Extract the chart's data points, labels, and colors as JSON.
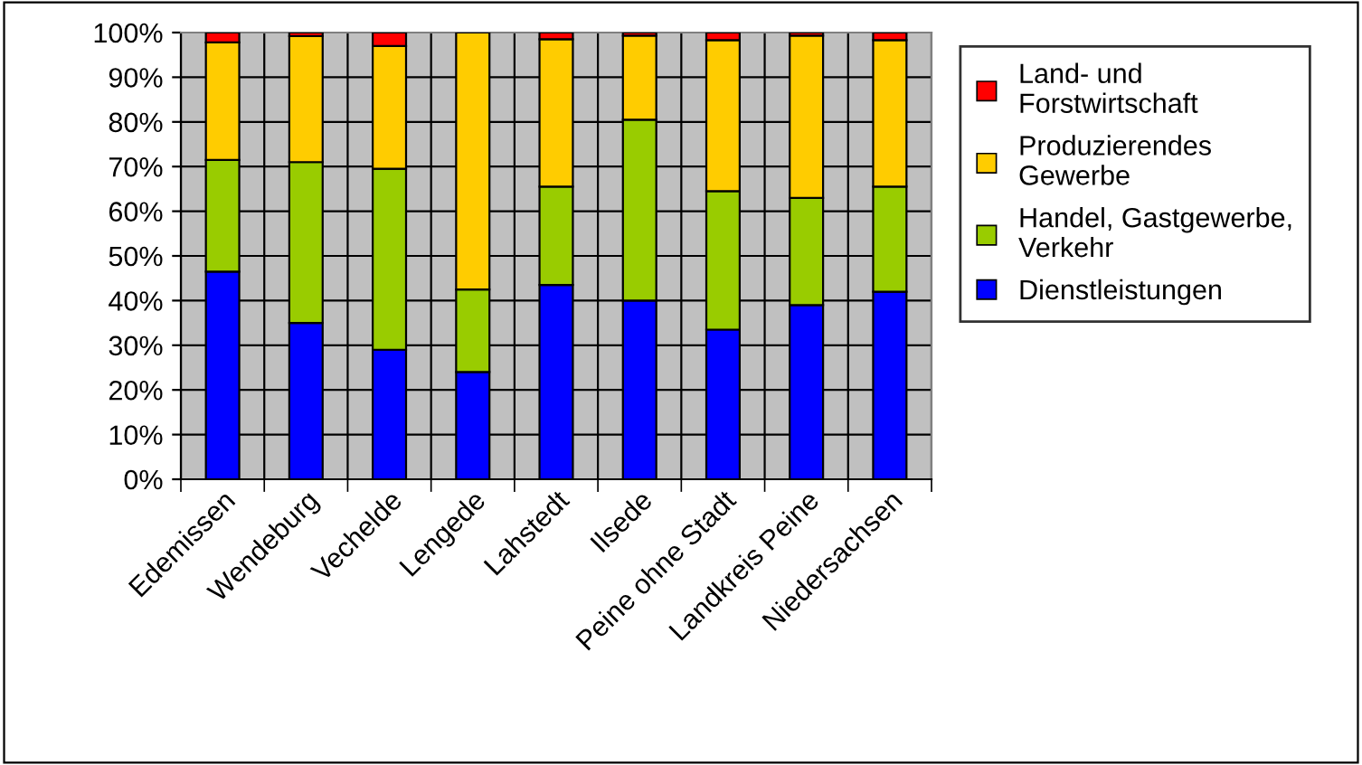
{
  "chart_data": {
    "type": "bar",
    "stacked": true,
    "categories": [
      "Edemissen",
      "Wendeburg",
      "Vechelde",
      "Lengede",
      "Lahstedt",
      "Ilsede",
      "Peine ohne Stadt",
      "Landkreis Peine",
      "Niedersachsen"
    ],
    "series": [
      {
        "name": "Dienstleistungen",
        "color": "#0000ff",
        "values": [
          46.5,
          35,
          29,
          24,
          43.5,
          40,
          33.5,
          39,
          42
        ]
      },
      {
        "name": "Handel, Gastgewerbe,\nVerkehr",
        "color": "#99cc00",
        "values": [
          25,
          36,
          40.5,
          18.5,
          22,
          40.5,
          31,
          24,
          23.5
        ]
      },
      {
        "name": "Produzierendes\nGewerbe",
        "color": "#ffcc00",
        "values": [
          26.3,
          28.2,
          27.5,
          57.5,
          33,
          18.8,
          33.8,
          36.3,
          32.8
        ]
      },
      {
        "name": "Land- und\nForstwirtschaft",
        "color": "#ff0000",
        "values": [
          2.2,
          0.8,
          3,
          null,
          1.5,
          0.7,
          1.7,
          0.7,
          1.7
        ]
      }
    ],
    "ylim": [
      0,
      100
    ],
    "yticks": [
      {
        "value": 0,
        "label": "0%"
      },
      {
        "value": 10,
        "label": "10%"
      },
      {
        "value": 20,
        "label": "20%"
      },
      {
        "value": 30,
        "label": "30%"
      },
      {
        "value": 40,
        "label": "40%"
      },
      {
        "value": 50,
        "label": "50%"
      },
      {
        "value": 60,
        "label": "60%"
      },
      {
        "value": 70,
        "label": "70%"
      },
      {
        "value": 80,
        "label": "80%"
      },
      {
        "value": 90,
        "label": "90%"
      },
      {
        "value": 100,
        "label": "100%"
      }
    ],
    "grid": true,
    "legend": "right"
  }
}
